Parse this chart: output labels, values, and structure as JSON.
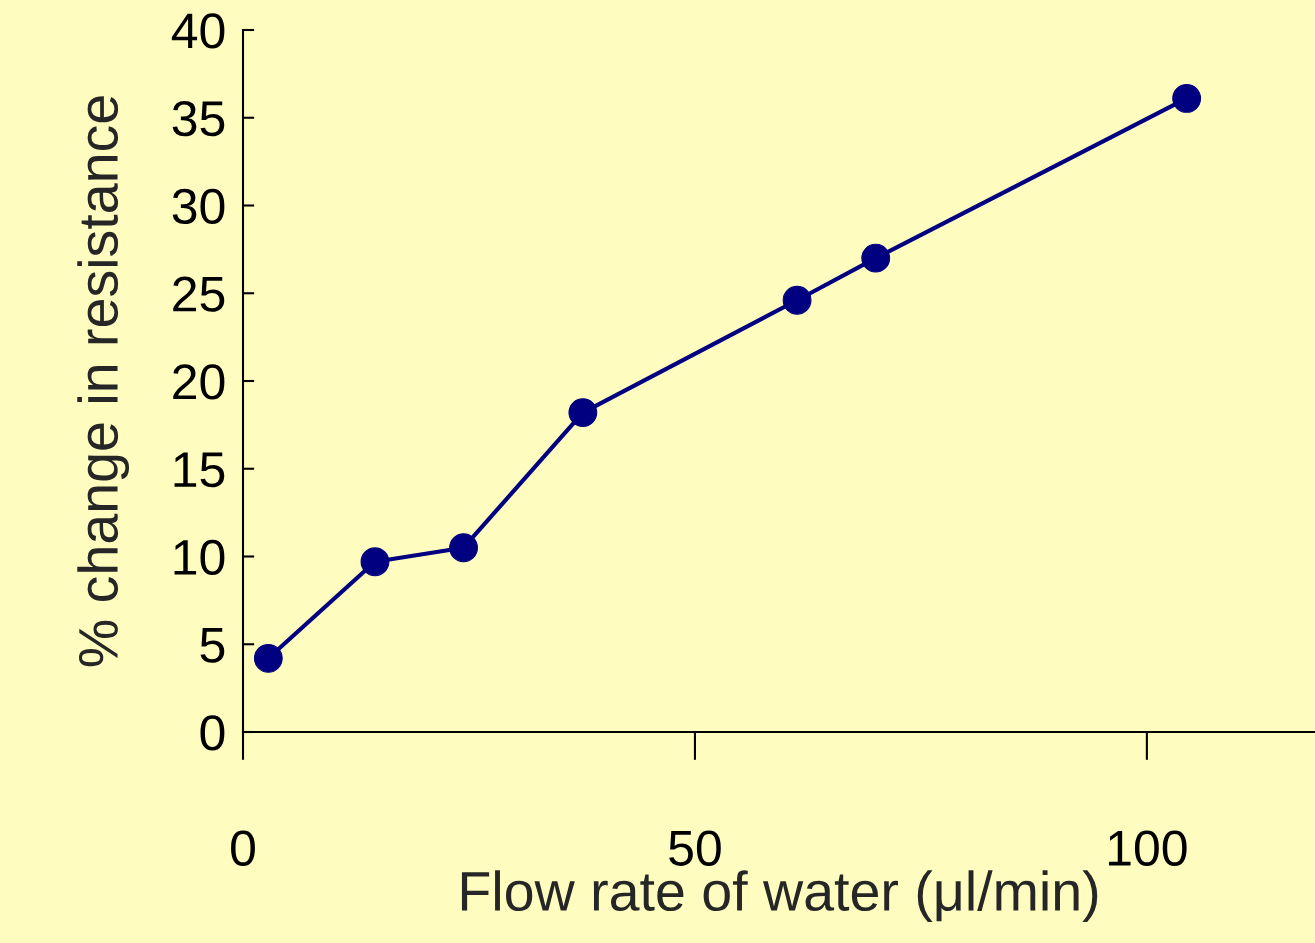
{
  "chart_data": {
    "type": "line",
    "xlabel": "Flow rate of water (μl/min)",
    "ylabel": "% change in resistance",
    "x": [
      2.8,
      14.6,
      24.4,
      37.6,
      61.3,
      70.0,
      104.4
    ],
    "series": [
      {
        "color": "#000080",
        "values": [
          4.2,
          9.7,
          10.5,
          18.2,
          24.6,
          27.0,
          36.1
        ]
      }
    ],
    "xlim": [
      0,
      118.6
    ],
    "ylim": [
      0,
      40
    ],
    "xticks": [
      0,
      50,
      100
    ],
    "yticks": [
      0,
      5,
      10,
      15,
      20,
      25,
      30,
      35,
      40
    ],
    "marker": "circle",
    "line_style": "solid",
    "grid": false,
    "legend": false
  }
}
